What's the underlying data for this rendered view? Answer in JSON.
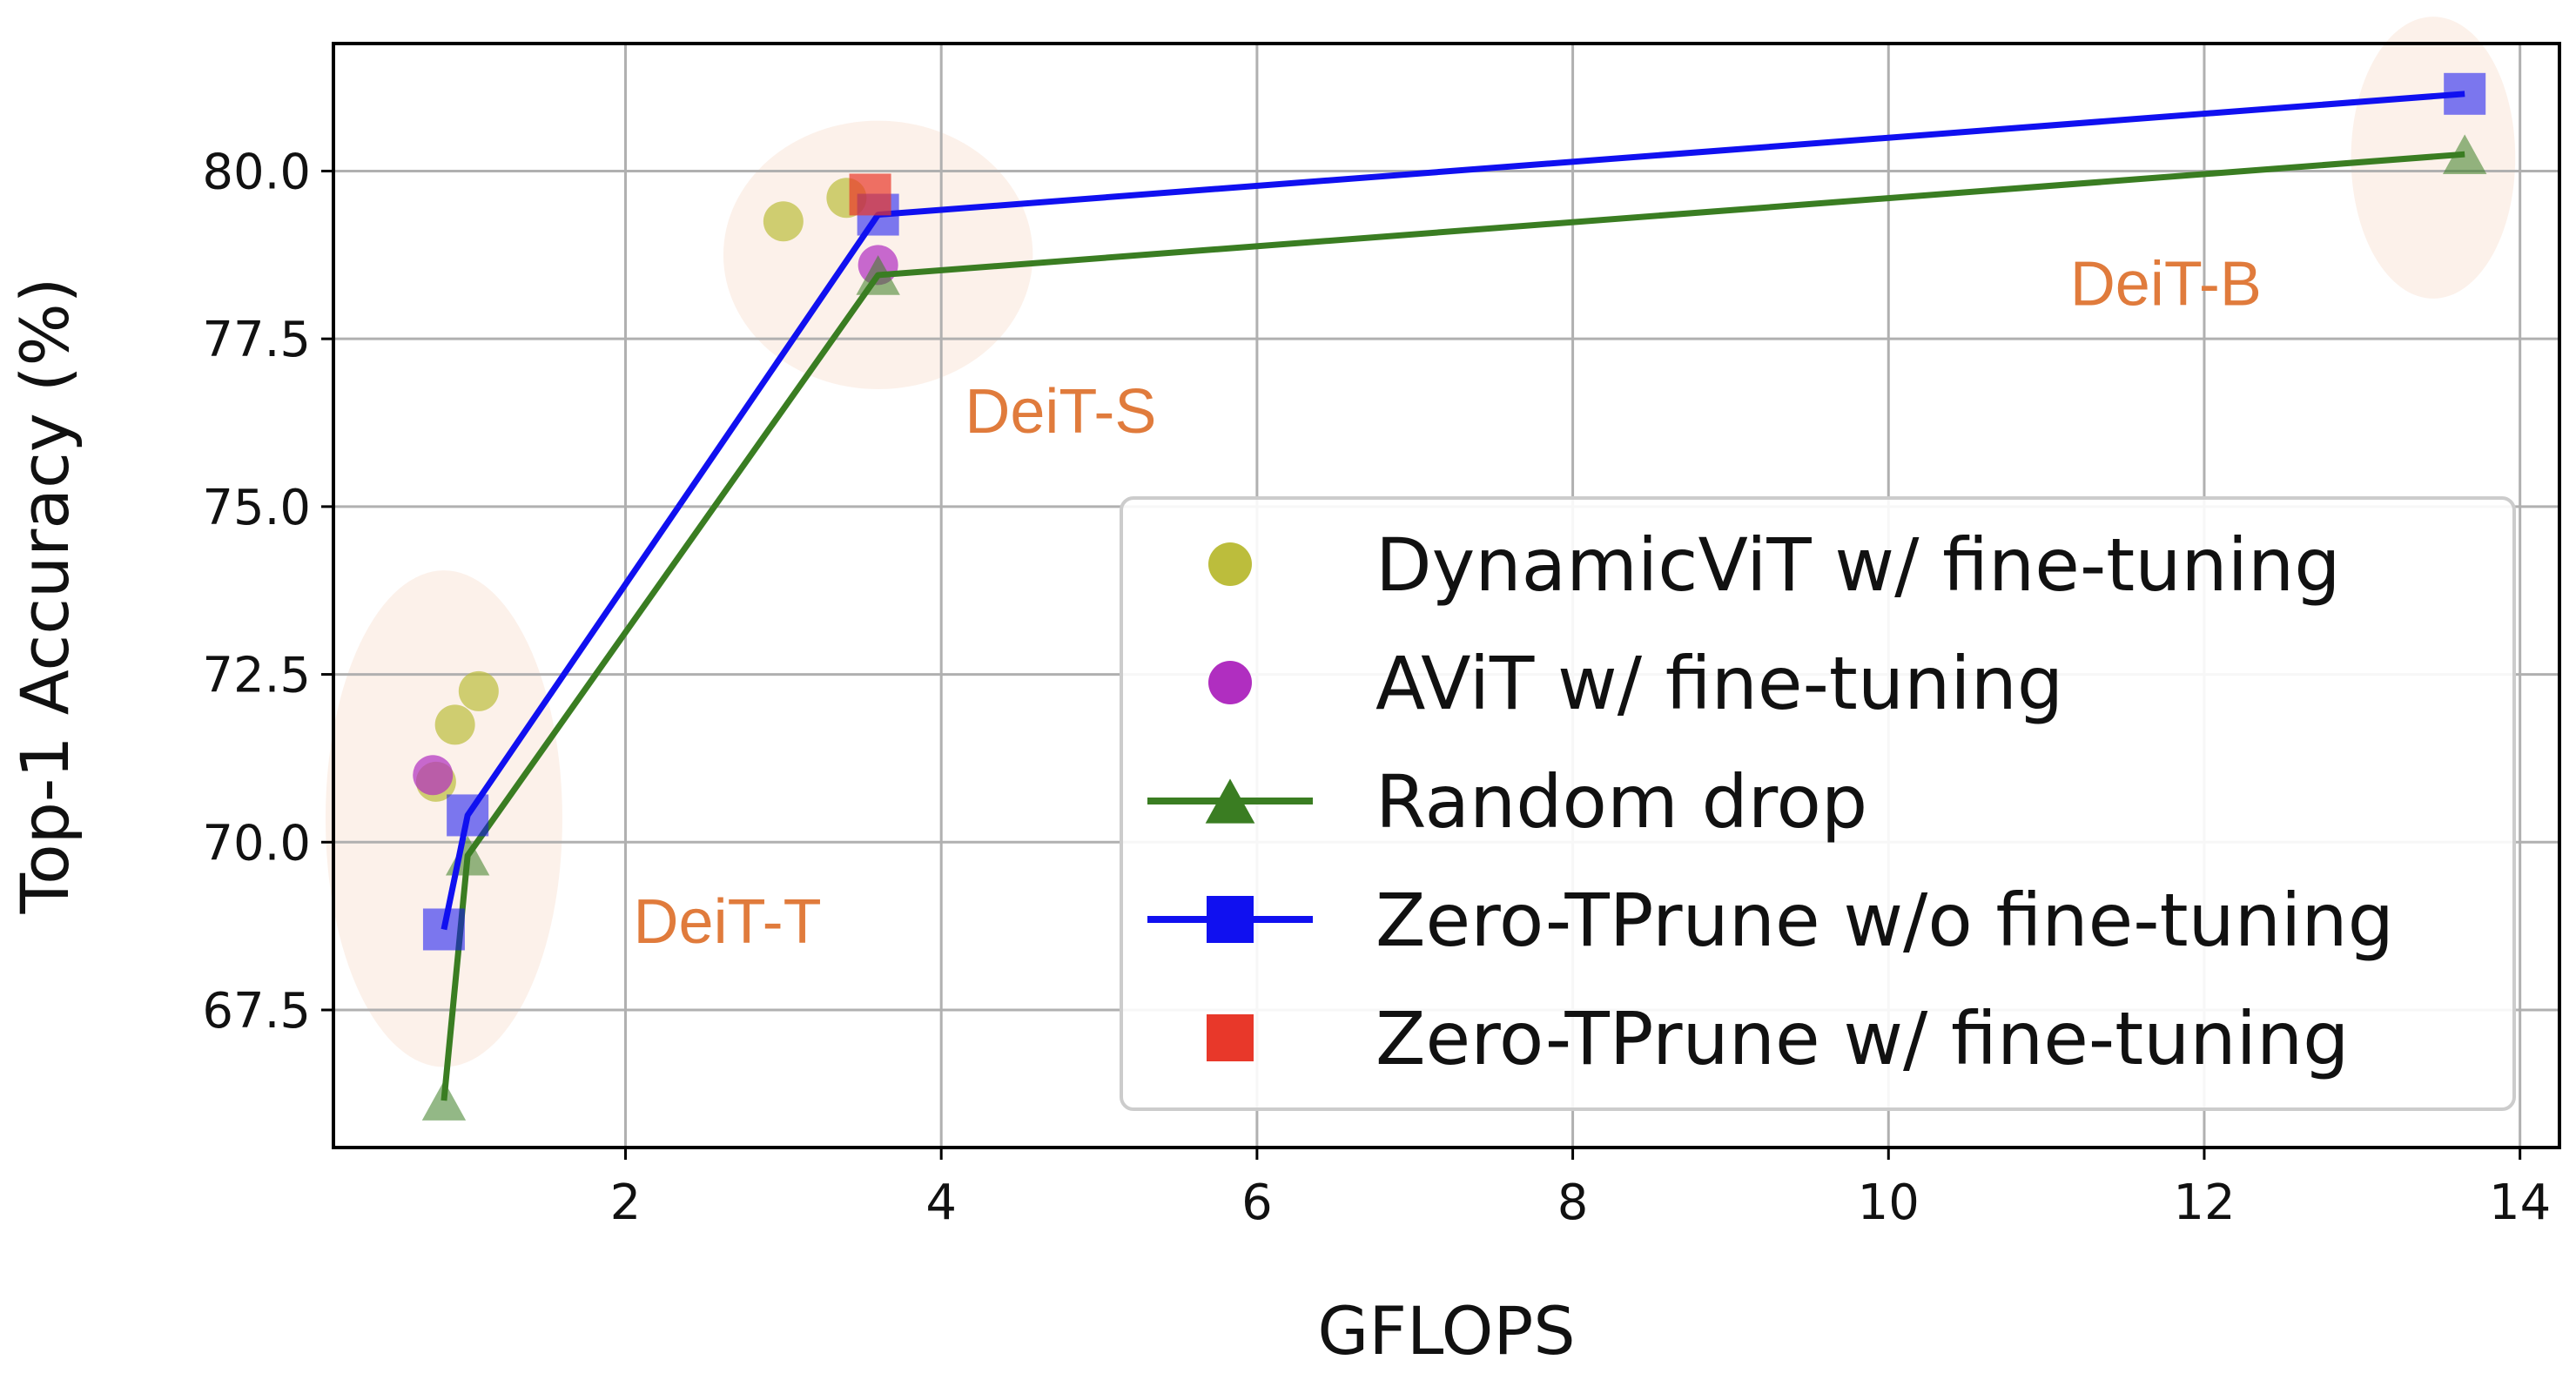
{
  "chart_data": {
    "type": "line",
    "title": "",
    "xlabel": "GFLOPS",
    "ylabel": "Top-1 Accuracy (%)",
    "xlim": [
      0.15,
      14.25
    ],
    "ylim": [
      65.45,
      81.9
    ],
    "xticks": [
      2,
      4,
      6,
      8,
      10,
      12,
      14
    ],
    "xtick_labels": [
      "2",
      "4",
      "6",
      "8",
      "10",
      "12",
      "14"
    ],
    "yticks": [
      67.5,
      70.0,
      72.5,
      75.0,
      77.5,
      80.0
    ],
    "ytick_labels": [
      "67.5",
      "70.0",
      "72.5",
      "75.0",
      "77.5",
      "80.0"
    ],
    "grid": true,
    "legend_position": "lower-right",
    "colors": {
      "dynamicvit": "#bcbd3c",
      "avit": "#b02ec0",
      "random": "#3a7d22",
      "zero_wo": "#1010f0",
      "zero_w": "#e8382a",
      "group_label": "#e07b3c",
      "group_ellipse": "#fbeee6"
    },
    "groups": [
      {
        "label": "DeiT-T",
        "cx": 0.85,
        "cy": 70.35,
        "rx": 0.75,
        "ry": 3.7,
        "label_x": 2.05,
        "label_y": 68.5
      },
      {
        "label": "DeiT-S",
        "cx": 3.6,
        "cy": 78.75,
        "rx": 0.98,
        "ry": 2.0,
        "label_x": 4.15,
        "label_y": 76.1
      },
      {
        "label": "DeiT-B",
        "cx": 13.45,
        "cy": 80.2,
        "rx": 0.52,
        "ry": 2.1,
        "label_x": 11.15,
        "label_y": 78.0
      }
    ],
    "series": [
      {
        "name": "DynamicViT w/ fine-tuning",
        "key": "dynamicvit",
        "kind": "scatter",
        "marker": "circle",
        "points": [
          [
            0.8,
            70.9
          ],
          [
            0.92,
            71.75
          ],
          [
            1.07,
            72.25
          ],
          [
            3.0,
            79.25
          ],
          [
            3.4,
            79.6
          ]
        ]
      },
      {
        "name": "AViT w/ fine-tuning",
        "key": "avit",
        "kind": "scatter",
        "marker": "circle",
        "points": [
          [
            0.78,
            71.0
          ],
          [
            3.6,
            78.6
          ]
        ]
      },
      {
        "name": "Random drop",
        "key": "random",
        "kind": "line",
        "marker": "triangle",
        "points": [
          [
            0.85,
            66.15
          ],
          [
            1.0,
            69.8
          ],
          [
            3.6,
            78.45
          ],
          [
            13.65,
            80.25
          ]
        ]
      },
      {
        "name": "Zero-TPrune w/o fine-tuning",
        "key": "zero_wo",
        "kind": "line",
        "marker": "square",
        "points": [
          [
            0.85,
            68.7
          ],
          [
            1.0,
            70.4
          ],
          [
            3.6,
            79.35
          ],
          [
            13.65,
            81.15
          ]
        ]
      },
      {
        "name": "Zero-TPrune w/ fine-tuning",
        "key": "zero_w",
        "kind": "scatter",
        "marker": "square",
        "points": [
          [
            3.55,
            79.65
          ]
        ]
      }
    ]
  }
}
